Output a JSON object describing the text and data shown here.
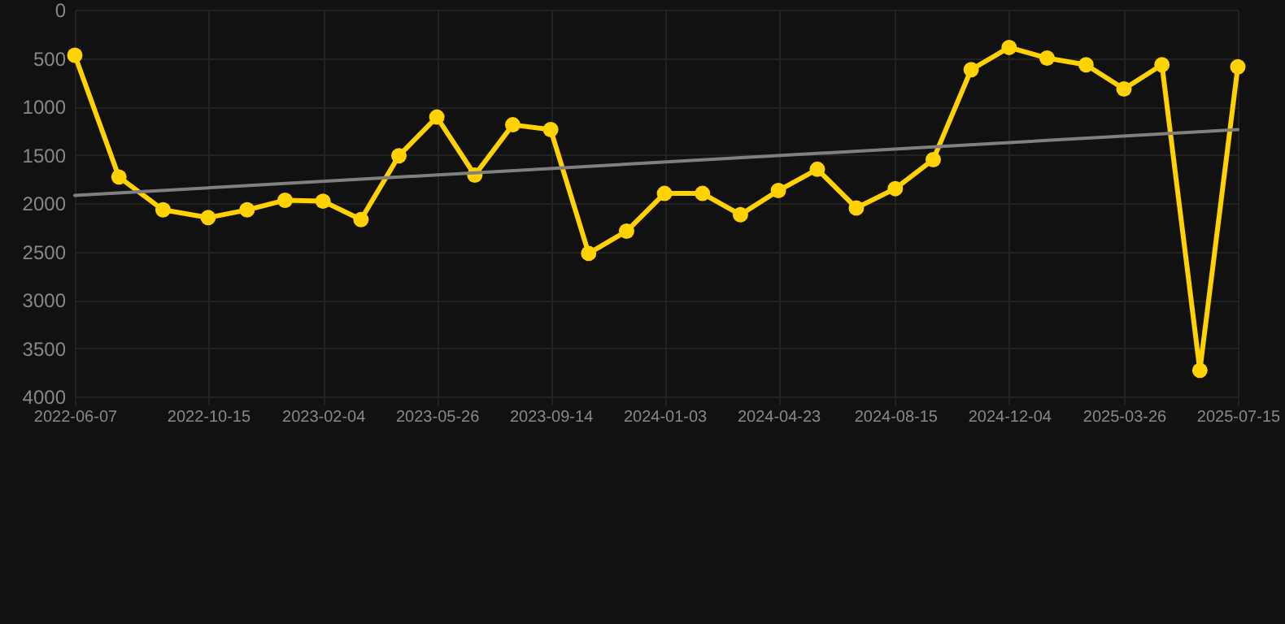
{
  "chart_data": {
    "type": "line",
    "x": [
      "2022-06-07",
      "2022-07-20",
      "2022-09-01",
      "2022-10-15",
      "2022-11-22",
      "2022-12-29",
      "2023-02-04",
      "2023-03-13",
      "2023-04-19",
      "2023-05-26",
      "2023-07-02",
      "2023-08-08",
      "2023-09-14",
      "2023-10-21",
      "2023-11-27",
      "2024-01-03",
      "2024-02-09",
      "2024-03-17",
      "2024-04-23",
      "2024-05-31",
      "2024-07-08",
      "2024-08-15",
      "2024-09-21",
      "2024-10-28",
      "2024-12-04",
      "2025-01-10",
      "2025-02-17",
      "2025-03-26",
      "2025-05-02",
      "2025-06-08",
      "2025-07-15"
    ],
    "series": [
      {
        "color": "#ffd200",
        "marker": "circle",
        "values": [
          470,
          1730,
          2070,
          2150,
          2070,
          1970,
          1980,
          2170,
          1510,
          1110,
          1710,
          1190,
          1240,
          2520,
          2290,
          1900,
          1900,
          2120,
          1870,
          1650,
          2050,
          1850,
          1550,
          620,
          390,
          500,
          570,
          820,
          570,
          3730,
          590
        ]
      },
      {
        "type": "line",
        "color": "#808080",
        "marker": "none",
        "x": [
          "2022-06-07",
          "2025-07-15"
        ],
        "values": [
          1920,
          1240
        ]
      }
    ],
    "ylim": [
      4000,
      0
    ],
    "yticks": [
      0,
      500,
      1000,
      1500,
      2000,
      2500,
      3000,
      3500,
      4000
    ],
    "xlim": [
      "2022-06-07",
      "2025-07-15"
    ],
    "xticks": [
      "2022-06-07",
      "2022-10-15",
      "2023-02-04",
      "2023-05-26",
      "2023-09-14",
      "2024-01-03",
      "2024-04-23",
      "2024-08-15",
      "2024-12-04",
      "2025-03-26",
      "2025-07-15"
    ],
    "grid": true
  }
}
